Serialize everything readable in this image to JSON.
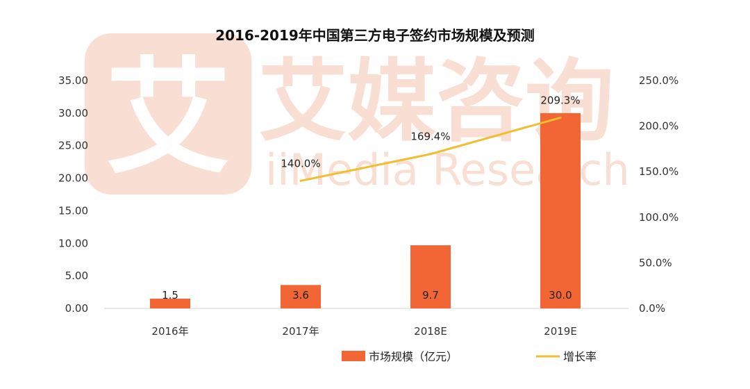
{
  "chart_data": {
    "type": "bar",
    "title": "2016-2019年中国第三方电子签约市场规模及预测",
    "categories": [
      "2016年",
      "2017年",
      "2018E",
      "2019E"
    ],
    "series": [
      {
        "name": "市场规模（亿元）",
        "type": "bar",
        "axis": "left",
        "values": [
          1.5,
          3.6,
          9.7,
          30.0
        ],
        "labels": [
          "1.5",
          "3.6",
          "9.7",
          "30.0"
        ],
        "color": "#F26535"
      },
      {
        "name": "增长率",
        "type": "line",
        "axis": "right",
        "values": [
          null,
          140.0,
          169.4,
          209.3
        ],
        "labels": [
          null,
          "140.0%",
          "169.4%",
          "209.3%"
        ],
        "color": "#F2BE2E"
      }
    ],
    "y_left": {
      "min": 0,
      "max": 35,
      "step": 5,
      "ticks": [
        "0.00",
        "5.00",
        "10.00",
        "15.00",
        "20.00",
        "25.00",
        "30.00",
        "35.00"
      ]
    },
    "y_right": {
      "min": 0,
      "max": 250,
      "step": 50,
      "ticks": [
        "0.0%",
        "50.0%",
        "100.0%",
        "150.0%",
        "200.0%",
        "250.0%"
      ]
    },
    "grid": false,
    "legend_position": "bottom-center"
  },
  "watermark": {
    "cn": "艾媒咨询",
    "en": "iiMedia Research",
    "logo_char": "艾",
    "color": "#F8D9CC"
  }
}
